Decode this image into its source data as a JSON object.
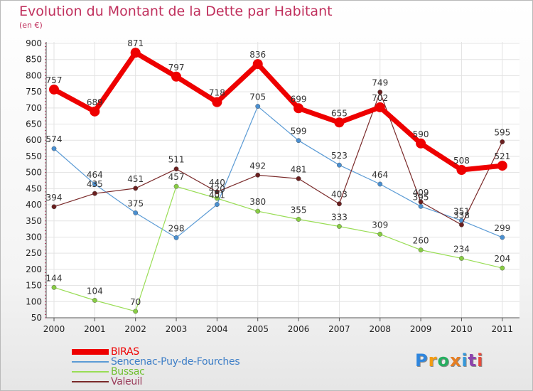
{
  "title": "Evolution du Montant de la Dette par Habitant",
  "subtitle": "(en €)",
  "brand": {
    "text": "Proxiti",
    "colors": [
      "#2e86de",
      "#f39c12",
      "#27ae60",
      "#e67e22",
      "#3498db",
      "#8e44ad",
      "#e74c3c"
    ]
  },
  "chart_data": {
    "type": "line",
    "title": "Evolution du Montant de la Dette par Habitant",
    "subtitle": "(en €)",
    "xlabel": "",
    "ylabel": "",
    "x": [
      "2000",
      "2001",
      "2002",
      "2003",
      "2004",
      "2005",
      "2006",
      "2007",
      "2008",
      "2009",
      "2010",
      "2011"
    ],
    "ylim": [
      50,
      900
    ],
    "yticks": [
      50,
      100,
      150,
      200,
      250,
      300,
      350,
      400,
      450,
      500,
      550,
      600,
      650,
      700,
      750,
      800,
      850,
      900
    ],
    "grid": true,
    "legend_position": "bottom",
    "series": [
      {
        "name": "BIRAS",
        "color": "#ee0000",
        "values": [
          757,
          689,
          871,
          797,
          718,
          836,
          699,
          655,
          702,
          590,
          508,
          521
        ]
      },
      {
        "name": "Sencenac-Puy-de-Fourches",
        "color": "#5b9bd5",
        "values": [
          574,
          464,
          375,
          298,
          401,
          705,
          599,
          523,
          464,
          395,
          351,
          299
        ]
      },
      {
        "name": "Bussac",
        "color": "#99dd55",
        "values": [
          144,
          104,
          70,
          457,
          420,
          380,
          355,
          333,
          309,
          260,
          234,
          204
        ]
      },
      {
        "name": "Valeuil",
        "color": "#7a2a2a",
        "values": [
          394,
          435,
          451,
          511,
          440,
          492,
          481,
          403,
          749,
          409,
          338,
          595
        ]
      }
    ]
  }
}
